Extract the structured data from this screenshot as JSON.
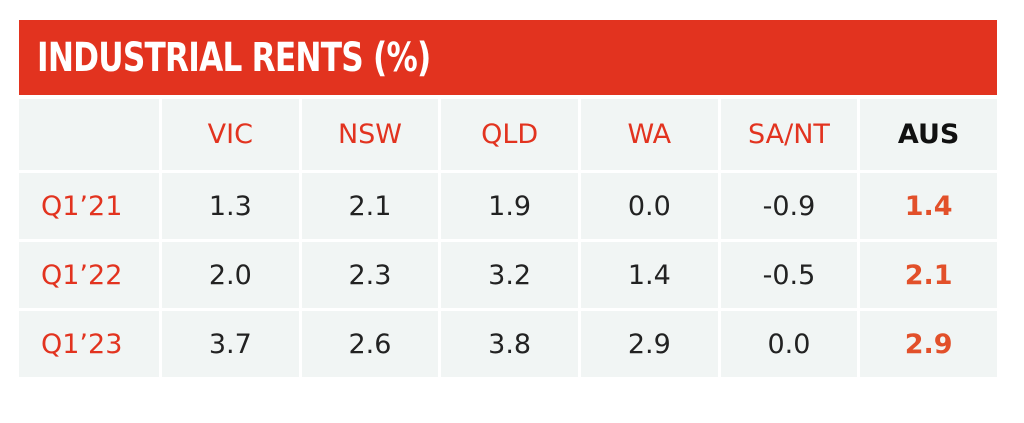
{
  "chart_data": {
    "type": "table",
    "title": "INDUSTRIAL RENTS (%)",
    "columns": [
      "",
      "VIC",
      "NSW",
      "QLD",
      "WA",
      "SA/NT",
      "AUS"
    ],
    "rows": [
      {
        "label": "Q1’21",
        "values": [
          "1.3",
          "2.1",
          "1.9",
          "0.0",
          "-0.9",
          "1.4"
        ]
      },
      {
        "label": "Q1’22",
        "values": [
          "2.0",
          "2.3",
          "3.2",
          "1.4",
          "-0.5",
          "2.1"
        ]
      },
      {
        "label": "Q1’23",
        "values": [
          "3.7",
          "2.6",
          "3.8",
          "2.9",
          "0.0",
          "2.9"
        ]
      }
    ]
  },
  "colors": {
    "accent": "#e2331f",
    "cell_background": "#f1f5f4",
    "highlight_value": "#e2502a"
  }
}
